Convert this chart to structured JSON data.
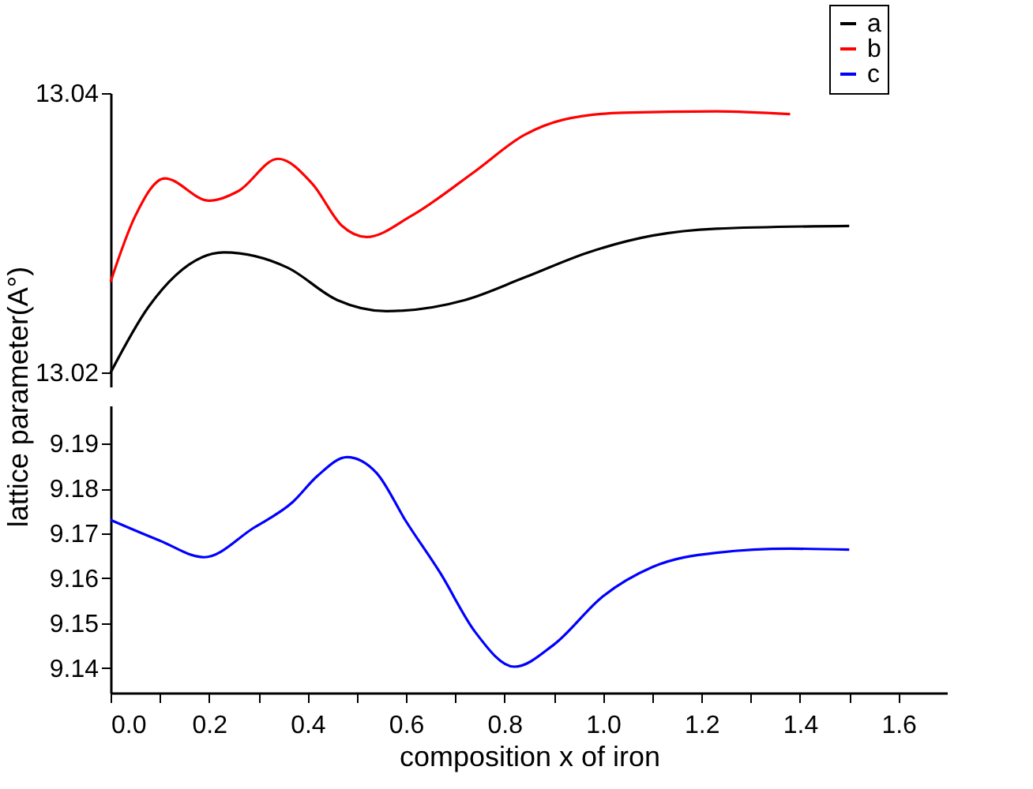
{
  "chart_data": [
    {
      "type": "line",
      "xlim": [
        0,
        1.7
      ],
      "ylim": [
        13.019,
        13.04
      ],
      "yticks": [
        13.02,
        13.04
      ],
      "tick_labels": "y",
      "legend": "top right",
      "grid": false,
      "line_style": "solid",
      "marker": "none",
      "series": [
        {
          "name": "a",
          "color": "#000000",
          "x": [
            0,
            0.077,
            0.23,
            0.36,
            0.46,
            0.56,
            0.72,
            0.84,
            0.97,
            1.1,
            1.23,
            1.5
          ],
          "values": [
            13.02,
            13.0247,
            13.0286,
            13.0275,
            13.0252,
            13.0244,
            13.0252,
            13.0268,
            13.0286,
            13.0298,
            13.0303,
            13.0305
          ]
        },
        {
          "name": "b",
          "color": "#ff0000",
          "x": [
            0,
            0.05,
            0.11,
            0.2,
            0.26,
            0.34,
            0.41,
            0.47,
            0.52,
            0.61,
            0.74,
            0.84,
            0.92,
            1.04,
            1.23,
            1.38
          ],
          "values": [
            13.0265,
            13.0312,
            13.0339,
            13.0323,
            13.033,
            13.0353,
            13.0335,
            13.0305,
            13.0297,
            13.0312,
            13.0344,
            13.037,
            13.0381,
            13.0386,
            13.0387,
            13.0385
          ]
        }
      ]
    },
    {
      "type": "line",
      "xlim": [
        0,
        1.7
      ],
      "ylim": [
        9.1345,
        9.1985
      ],
      "yticks": [
        9.14,
        9.15,
        9.16,
        9.17,
        9.18,
        9.19
      ],
      "xticks": [
        {
          "value": 0,
          "label": "0.0"
        },
        {
          "value": 0.1,
          "label": null
        },
        {
          "value": 0.2,
          "label": "0.2"
        },
        {
          "value": 0.3,
          "label": null
        },
        {
          "value": 0.4,
          "label": "0.4"
        },
        {
          "value": 0.5,
          "label": null
        },
        {
          "value": 0.6,
          "label": "0.6"
        },
        {
          "value": 0.7,
          "label": null
        },
        {
          "value": 0.8,
          "label": "0.8"
        },
        {
          "value": 0.9,
          "label": null
        },
        {
          "value": 1,
          "label": "1.0"
        },
        {
          "value": 1.1,
          "label": null
        },
        {
          "value": 1.2,
          "label": "1.2"
        },
        {
          "value": 1.3,
          "label": null
        },
        {
          "value": 1.4,
          "label": "1.4"
        },
        {
          "value": 1.5,
          "label": null
        },
        {
          "value": 1.6,
          "label": "1.6"
        }
      ],
      "xlabel": "composition x of iron",
      "ylabel": "lattice parameter(A°)",
      "grid": false,
      "line_style": "solid",
      "marker": "none",
      "series": [
        {
          "name": "c",
          "color": "#0000ff",
          "x": [
            0,
            0.1,
            0.19,
            0.29,
            0.37,
            0.42,
            0.48,
            0.54,
            0.6,
            0.67,
            0.74,
            0.82,
            0.9,
            1.0,
            1.1,
            1.23,
            1.38,
            1.5
          ],
          "values": [
            9.173,
            9.1684,
            9.1647,
            9.1712,
            9.177,
            9.1828,
            9.187,
            9.1835,
            9.1727,
            9.1611,
            9.1481,
            9.1403,
            9.1452,
            9.156,
            9.1625,
            9.1657,
            9.1666,
            9.1664
          ]
        }
      ]
    }
  ]
}
